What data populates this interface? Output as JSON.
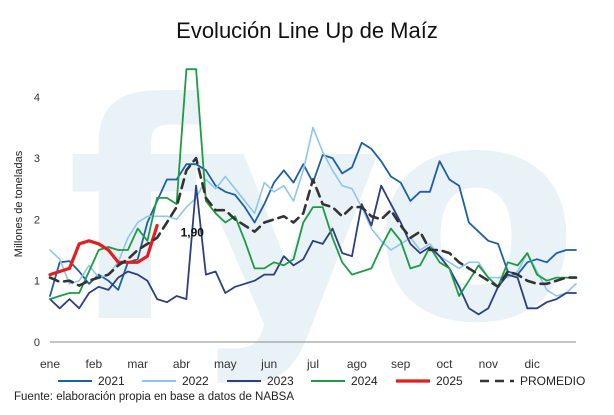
{
  "chart_data": {
    "type": "line",
    "title": "Evolución Line Up de Maíz",
    "xlabel": "",
    "ylabel": "Millones de toneladas",
    "ylim": [
      0,
      4.6
    ],
    "yticks": [
      "0",
      "1",
      "2",
      "3",
      "4"
    ],
    "months": [
      "ene",
      "feb",
      "mar",
      "abr",
      "may",
      "jun",
      "jul",
      "ago",
      "sep",
      "oct",
      "nov",
      "dic"
    ],
    "grid": false,
    "legend_position": "bottom",
    "source": "Fuente: elaboración propia en base a datos de NABSA",
    "watermark": "fyo",
    "last_value": {
      "label": "1,90",
      "series": "2025",
      "week": 13,
      "value": 1.9
    },
    "series": [
      {
        "name": "2021",
        "color": "#1f5fa6",
        "dashed": false,
        "width": 1.8,
        "values": [
          0.75,
          1.3,
          1.32,
          1.15,
          0.95,
          1.1,
          1.0,
          0.85,
          1.3,
          1.35,
          1.95,
          2.3,
          2.65,
          2.65,
          2.9,
          2.9,
          2.8,
          2.55,
          2.45,
          2.4,
          2.2,
          1.95,
          2.25,
          2.6,
          2.8,
          2.6,
          2.9,
          2.6,
          3.05,
          3.0,
          2.75,
          2.85,
          3.25,
          3.15,
          2.95,
          2.7,
          2.6,
          2.3,
          2.45,
          2.45,
          2.95,
          2.65,
          2.55,
          1.95,
          1.8,
          1.65,
          1.6,
          1.15,
          1.1,
          1.3,
          1.35,
          1.3,
          1.45,
          1.5,
          1.5
        ]
      },
      {
        "name": "2022",
        "color": "#8ec6ee",
        "dashed": false,
        "width": 1.6,
        "values": [
          1.5,
          1.35,
          0.95,
          1.0,
          1.25,
          1.05,
          1.1,
          1.3,
          1.7,
          1.95,
          2.05,
          2.05,
          2.05,
          2.0,
          2.2,
          2.35,
          2.65,
          2.5,
          2.7,
          2.5,
          2.3,
          2.1,
          2.6,
          2.45,
          2.55,
          2.3,
          2.8,
          3.5,
          3.1,
          2.8,
          2.55,
          2.5,
          2.2,
          1.85,
          1.65,
          1.5,
          1.6,
          1.7,
          1.5,
          1.6,
          1.4,
          1.3,
          1.2,
          1.3,
          1.3,
          1.05,
          1.05,
          1.05,
          1.15,
          1.45,
          1.15,
          0.85,
          0.75,
          0.8,
          0.95
        ]
      },
      {
        "name": "2023",
        "color": "#2c3f80",
        "dashed": false,
        "width": 1.8,
        "values": [
          0.7,
          0.55,
          0.7,
          0.55,
          0.8,
          0.9,
          0.85,
          1.05,
          1.15,
          1.1,
          1.0,
          0.7,
          0.65,
          0.75,
          0.7,
          2.55,
          1.1,
          1.15,
          0.8,
          0.9,
          0.95,
          1.0,
          1.1,
          1.1,
          1.4,
          1.25,
          1.35,
          1.65,
          1.6,
          1.85,
          1.45,
          1.4,
          2.25,
          1.9,
          2.55,
          2.25,
          1.95,
          1.6,
          1.45,
          1.55,
          1.4,
          1.2,
          0.9,
          0.55,
          0.45,
          0.55,
          0.9,
          1.1,
          1.05,
          0.55,
          0.55,
          0.65,
          0.7,
          0.8,
          0.8
        ]
      },
      {
        "name": "2024",
        "color": "#1f9a45",
        "dashed": false,
        "width": 1.8,
        "values": [
          0.7,
          0.75,
          0.8,
          0.8,
          1.15,
          1.5,
          1.55,
          1.5,
          1.5,
          1.85,
          1.65,
          2.35,
          2.35,
          2.25,
          4.45,
          4.45,
          2.3,
          2.1,
          1.95,
          2.05,
          1.65,
          1.2,
          1.2,
          1.3,
          1.25,
          1.35,
          1.95,
          2.2,
          2.2,
          1.7,
          1.3,
          1.1,
          1.15,
          1.2,
          1.55,
          1.85,
          1.65,
          1.2,
          1.25,
          1.55,
          1.3,
          1.2,
          0.75,
          1.0,
          1.25,
          1.05,
          0.9,
          1.3,
          1.25,
          1.45,
          1.1,
          1.0,
          1.05,
          1.05,
          1.05
        ]
      },
      {
        "name": "2025",
        "color": "#e41e1e",
        "dashed": false,
        "width": 3.2,
        "values": [
          1.1,
          1.15,
          1.2,
          1.6,
          1.65,
          1.6,
          1.5,
          1.3,
          1.3,
          1.3,
          1.4,
          1.9
        ]
      },
      {
        "name": "PROMEDIO",
        "color": "#333333",
        "dashed": true,
        "width": 2.6,
        "values": [
          1.05,
          0.98,
          1.0,
          0.92,
          1.0,
          1.05,
          1.1,
          1.25,
          1.35,
          1.5,
          1.6,
          1.7,
          1.95,
          2.2,
          2.8,
          3.0,
          2.35,
          2.15,
          2.15,
          2.0,
          1.9,
          1.8,
          1.95,
          2.0,
          2.05,
          1.95,
          2.1,
          2.65,
          2.25,
          2.2,
          2.05,
          2.2,
          2.2,
          2.05,
          2.0,
          2.15,
          1.9,
          1.7,
          1.8,
          1.5,
          1.5,
          1.45,
          1.3,
          1.2,
          1.1,
          1.0,
          0.9,
          1.15,
          1.1,
          1.0,
          0.95,
          0.95,
          1.0,
          1.05,
          1.05
        ]
      }
    ]
  }
}
